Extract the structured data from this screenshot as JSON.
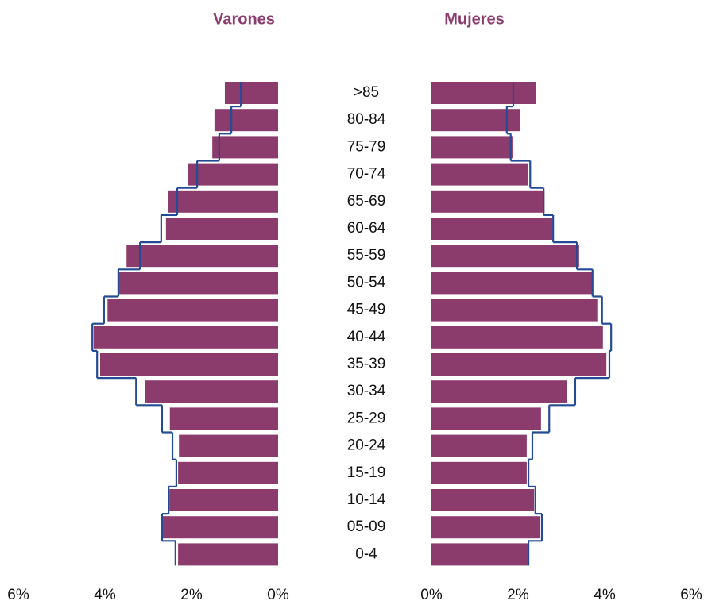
{
  "chart_data": {
    "type": "pyramid",
    "categories": [
      ">85",
      "80-84",
      "75-79",
      "70-74",
      "65-69",
      "60-64",
      "55-59",
      "50-54",
      "45-49",
      "40-44",
      "35-39",
      "30-34",
      "25-29",
      "20-24",
      "15-19",
      "10-14",
      "05-09",
      "0-4"
    ],
    "bar_color": "#8c3b6d",
    "outline_color": "#244b93",
    "panels": [
      {
        "title": "Varones",
        "direction": "left",
        "xlim": [
          0,
          6
        ],
        "xticks": [
          {
            "value": 6,
            "label": "6%"
          },
          {
            "value": 4,
            "label": "4%"
          },
          {
            "value": 2,
            "label": "2%"
          },
          {
            "value": 0,
            "label": "0%"
          }
        ],
        "values": [
          1.23,
          1.47,
          1.52,
          2.09,
          2.55,
          2.59,
          3.5,
          3.67,
          3.94,
          4.26,
          4.11,
          3.08,
          2.5,
          2.29,
          2.31,
          2.51,
          2.66,
          2.31
        ],
        "outline": [
          0.86,
          1.08,
          1.36,
          1.87,
          2.33,
          2.7,
          3.19,
          3.69,
          4.02,
          4.29,
          4.18,
          3.28,
          2.68,
          2.44,
          2.35,
          2.53,
          2.68,
          2.37
        ]
      },
      {
        "title": "Mujeres",
        "direction": "right",
        "xlim": [
          0,
          6
        ],
        "xticks": [
          {
            "value": 0,
            "label": "0%"
          },
          {
            "value": 2,
            "label": "2%"
          },
          {
            "value": 4,
            "label": "4%"
          },
          {
            "value": 6,
            "label": "6%"
          }
        ],
        "values": [
          2.42,
          2.04,
          1.87,
          2.22,
          2.61,
          2.79,
          3.41,
          3.71,
          3.83,
          3.96,
          4.04,
          3.12,
          2.53,
          2.2,
          2.2,
          2.37,
          2.5,
          2.24
        ],
        "outline": [
          1.89,
          1.74,
          1.83,
          2.28,
          2.59,
          2.81,
          3.36,
          3.72,
          3.94,
          4.15,
          4.11,
          3.32,
          2.72,
          2.33,
          2.24,
          2.4,
          2.55,
          2.24
        ]
      }
    ]
  }
}
